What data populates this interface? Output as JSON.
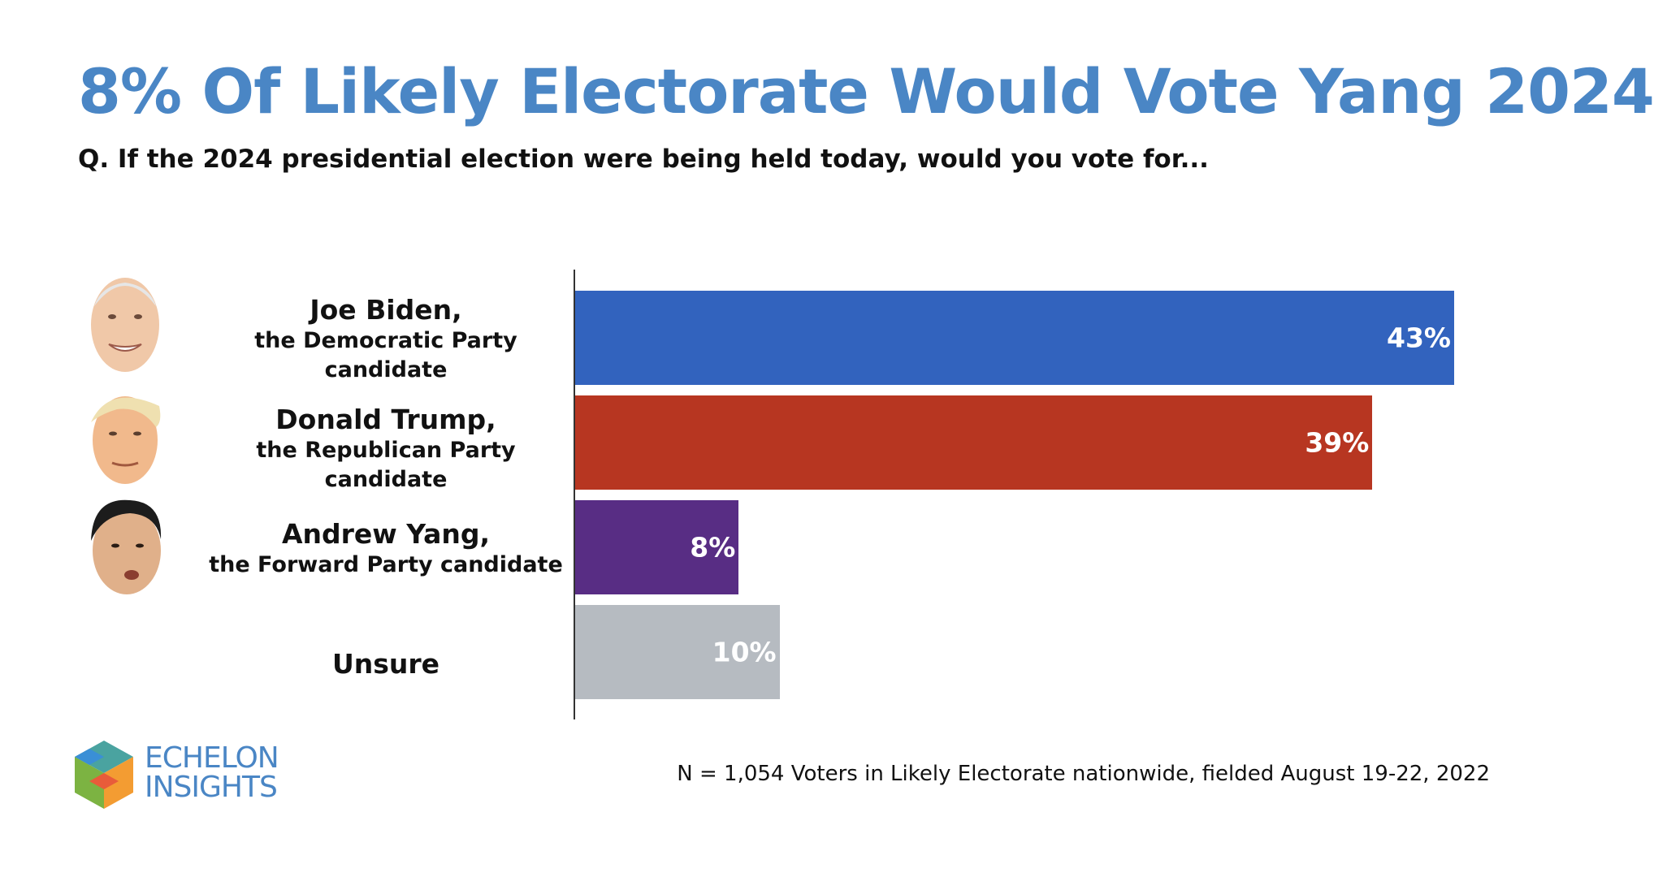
{
  "title": "8% Of Likely Electorate Would Vote Yang 2024",
  "subtitle": "Q. If the 2024 presidential election were being held today, would you vote for...",
  "footnote": "N = 1,054 Voters in Likely Electorate nationwide, fielded August 19-22, 2022",
  "logo": {
    "line1": "ECHELON",
    "line2": "INSIGHTS"
  },
  "chart_data": {
    "type": "bar",
    "orientation": "horizontal",
    "categories": [
      {
        "name": "Joe Biden,",
        "party": "the Democratic Party candidate"
      },
      {
        "name": "Donald Trump,",
        "party": "the Republican Party candidate"
      },
      {
        "name": "Andrew Yang,",
        "party": "the Forward Party candidate"
      },
      {
        "name": "Unsure",
        "party": ""
      }
    ],
    "values": [
      43,
      39,
      8,
      10
    ],
    "value_labels": [
      "43%",
      "39%",
      "8%",
      "10%"
    ],
    "colors": [
      "#3263be",
      "#b73621",
      "#582d84",
      "#b6bbc1"
    ],
    "xlim": [
      0,
      43
    ],
    "grid": false,
    "legend": "none"
  }
}
